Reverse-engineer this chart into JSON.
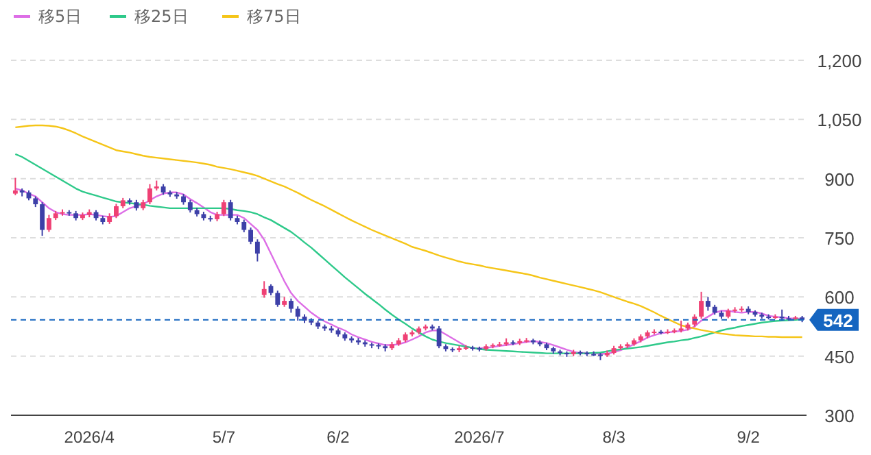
{
  "chart_data": {
    "type": "candlestick",
    "categories": [
      null,
      null,
      null,
      null,
      null,
      null,
      null,
      null,
      null,
      null,
      null,
      "2026/4",
      null,
      null,
      null,
      null,
      null,
      null,
      null,
      null,
      null,
      null,
      null,
      null,
      null,
      null,
      null,
      null,
      null,
      null,
      null,
      "5/7",
      null,
      null,
      null,
      null,
      null,
      null,
      null,
      null,
      null,
      null,
      null,
      null,
      null,
      null,
      null,
      null,
      "6/2",
      null,
      null,
      null,
      null,
      null,
      null,
      null,
      null,
      null,
      null,
      null,
      null,
      null,
      null,
      null,
      null,
      null,
      null,
      null,
      null,
      "2026/7",
      null,
      null,
      null,
      null,
      null,
      null,
      null,
      null,
      null,
      null,
      null,
      null,
      null,
      null,
      null,
      null,
      null,
      null,
      null,
      "8/3",
      null,
      null,
      null,
      null,
      null,
      null,
      null,
      null,
      null,
      null,
      null,
      null,
      null,
      null,
      null,
      null,
      null,
      null,
      null,
      "9/2",
      null,
      null,
      null,
      null,
      null,
      null,
      null,
      null
    ],
    "ylim": [
      300,
      1200
    ],
    "yticks": [
      {
        "value": 300,
        "label": "300"
      },
      {
        "value": 450,
        "label": "450"
      },
      {
        "value": 600,
        "label": "600"
      },
      {
        "value": 750,
        "label": "750"
      },
      {
        "value": 900,
        "label": "900"
      },
      {
        "value": 1050,
        "label": "1,050"
      },
      {
        "value": 1200,
        "label": "1,200"
      }
    ],
    "grid": "y",
    "legend": "top left",
    "ref_lines": [
      {
        "axis": "y",
        "value": 542,
        "label": "542",
        "color": "#1565c0",
        "line_style": "dashed"
      }
    ],
    "series": [
      {
        "ohlc": [
          [
            862,
            902,
            858,
            870
          ],
          [
            870,
            875,
            855,
            865
          ],
          [
            865,
            870,
            845,
            850
          ],
          [
            850,
            855,
            828,
            835
          ],
          [
            835,
            840,
            755,
            770
          ],
          [
            770,
            808,
            765,
            800
          ],
          [
            800,
            818,
            795,
            812
          ],
          [
            812,
            822,
            806,
            815
          ],
          [
            815,
            820,
            806,
            812
          ],
          [
            812,
            818,
            794,
            800
          ],
          [
            800,
            814,
            795,
            808
          ],
          [
            808,
            822,
            802,
            815
          ],
          [
            815,
            820,
            794,
            800
          ],
          [
            800,
            806,
            784,
            790
          ],
          [
            790,
            812,
            785,
            805
          ],
          [
            805,
            836,
            800,
            830
          ],
          [
            830,
            851,
            825,
            845
          ],
          [
            845,
            850,
            834,
            840
          ],
          [
            840,
            846,
            819,
            825
          ],
          [
            825,
            846,
            820,
            840
          ],
          [
            840,
            886,
            835,
            875
          ],
          [
            875,
            895,
            870,
            880
          ],
          [
            880,
            886,
            859,
            865
          ],
          [
            865,
            870,
            854,
            860
          ],
          [
            860,
            866,
            849,
            855
          ],
          [
            855,
            861,
            834,
            840
          ],
          [
            840,
            846,
            814,
            820
          ],
          [
            820,
            826,
            804,
            810
          ],
          [
            810,
            816,
            794,
            800
          ],
          [
            800,
            806,
            791,
            797
          ],
          [
            797,
            816,
            792,
            810
          ],
          [
            810,
            846,
            805,
            840
          ],
          [
            840,
            846,
            794,
            800
          ],
          [
            800,
            806,
            784,
            790
          ],
          [
            790,
            796,
            764,
            770
          ],
          [
            770,
            776,
            734,
            740
          ],
          [
            740,
            746,
            690,
            710
          ],
          [
            605,
            640,
            598,
            620
          ],
          [
            628,
            632,
            604,
            610
          ],
          [
            610,
            616,
            575,
            580
          ],
          [
            580,
            600,
            575,
            590
          ],
          [
            590,
            596,
            560,
            570
          ],
          [
            570,
            576,
            540,
            550
          ],
          [
            550,
            556,
            534,
            540
          ],
          [
            540,
            546,
            529,
            535
          ],
          [
            535,
            540,
            519,
            525
          ],
          [
            525,
            530,
            514,
            520
          ],
          [
            520,
            526,
            509,
            515
          ],
          [
            515,
            520,
            499,
            505
          ],
          [
            505,
            510,
            489,
            495
          ],
          [
            495,
            500,
            484,
            490
          ],
          [
            490,
            496,
            479,
            485
          ],
          [
            485,
            490,
            474,
            480
          ],
          [
            480,
            484,
            470,
            478
          ],
          [
            478,
            482,
            468,
            475
          ],
          [
            475,
            480,
            462,
            470
          ],
          [
            470,
            486,
            465,
            480
          ],
          [
            480,
            496,
            476,
            490
          ],
          [
            490,
            510,
            485,
            505
          ],
          [
            505,
            515,
            500,
            510
          ],
          [
            510,
            525,
            505,
            520
          ],
          [
            520,
            530,
            515,
            525
          ],
          [
            525,
            530,
            515,
            520
          ],
          [
            520,
            526,
            470,
            475
          ],
          [
            475,
            480,
            462,
            468
          ],
          [
            468,
            472,
            460,
            465
          ],
          [
            465,
            476,
            460,
            470
          ],
          [
            470,
            478,
            465,
            472
          ],
          [
            472,
            476,
            464,
            470
          ],
          [
            470,
            474,
            462,
            468
          ],
          [
            468,
            480,
            464,
            475
          ],
          [
            475,
            482,
            470,
            478
          ],
          [
            478,
            486,
            474,
            480
          ],
          [
            480,
            495,
            476,
            485
          ],
          [
            485,
            490,
            478,
            483
          ],
          [
            483,
            494,
            478,
            488
          ],
          [
            488,
            496,
            484,
            490
          ],
          [
            490,
            494,
            480,
            485
          ],
          [
            485,
            490,
            475,
            480
          ],
          [
            480,
            484,
            465,
            470
          ],
          [
            470,
            474,
            456,
            462
          ],
          [
            462,
            466,
            452,
            458
          ],
          [
            458,
            462,
            448,
            455
          ],
          [
            455,
            466,
            450,
            460
          ],
          [
            460,
            464,
            452,
            458
          ],
          [
            458,
            462,
            450,
            455
          ],
          [
            455,
            462,
            450,
            454
          ],
          [
            454,
            458,
            440,
            452
          ],
          [
            452,
            464,
            448,
            458
          ],
          [
            458,
            476,
            454,
            470
          ],
          [
            470,
            480,
            466,
            475
          ],
          [
            475,
            485,
            470,
            480
          ],
          [
            480,
            495,
            476,
            490
          ],
          [
            490,
            505,
            485,
            500
          ],
          [
            500,
            515,
            495,
            510
          ],
          [
            510,
            518,
            505,
            512
          ],
          [
            512,
            516,
            505,
            510
          ],
          [
            510,
            518,
            506,
            512
          ],
          [
            512,
            520,
            508,
            515
          ],
          [
            515,
            540,
            510,
            520
          ],
          [
            520,
            535,
            515,
            530
          ],
          [
            530,
            556,
            525,
            550
          ],
          [
            550,
            613,
            545,
            590
          ],
          [
            590,
            600,
            565,
            575
          ],
          [
            575,
            580,
            555,
            560
          ],
          [
            560,
            565,
            545,
            550
          ],
          [
            550,
            570,
            546,
            565
          ],
          [
            565,
            574,
            560,
            568
          ],
          [
            568,
            576,
            562,
            570
          ],
          [
            570,
            576,
            556,
            562
          ],
          [
            562,
            566,
            550,
            555
          ],
          [
            555,
            560,
            545,
            550
          ],
          [
            550,
            556,
            543,
            548
          ],
          [
            548,
            556,
            544,
            550
          ],
          [
            550,
            568,
            540,
            546
          ],
          [
            546,
            552,
            540,
            545
          ],
          [
            545,
            552,
            542,
            548
          ],
          [
            548,
            552,
            536,
            542
          ]
        ],
        "colors": [
          "#ef4074",
          "#3d40a8",
          "#3d40a8",
          "#3d40a8",
          "#3d40a8",
          "#ef4074",
          "#ef4074",
          "#ef4074",
          "#3d40a8",
          "#3d40a8",
          "#ef4074",
          "#ef4074",
          "#3d40a8",
          "#3d40a8",
          "#ef4074",
          "#ef4074",
          "#ef4074",
          "#3d40a8",
          "#3d40a8",
          "#ef4074",
          "#ef4074",
          "#ef4074",
          "#3d40a8",
          "#3d40a8",
          "#3d40a8",
          "#3d40a8",
          "#3d40a8",
          "#3d40a8",
          "#3d40a8",
          "#3d40a8",
          "#ef4074",
          "#ef4074",
          "#3d40a8",
          "#3d40a8",
          "#3d40a8",
          "#3d40a8",
          "#3d40a8",
          "#ef4074",
          "#3d40a8",
          "#3d40a8",
          "#ef4074",
          "#3d40a8",
          "#3d40a8",
          "#3d40a8",
          "#3d40a8",
          "#3d40a8",
          "#3d40a8",
          "#3d40a8",
          "#3d40a8",
          "#3d40a8",
          "#3d40a8",
          "#3d40a8",
          "#3d40a8",
          "#3d40a8",
          "#3d40a8",
          "#3d40a8",
          "#ef4074",
          "#ef4074",
          "#ef4074",
          "#ef4074",
          "#ef4074",
          "#ef4074",
          "#3d40a8",
          "#3d40a8",
          "#3d40a8",
          "#3d40a8",
          "#ef4074",
          "#ef4074",
          "#3d40a8",
          "#3d40a8",
          "#ef4074",
          "#ef4074",
          "#ef4074",
          "#ef4074",
          "#3d40a8",
          "#ef4074",
          "#ef4074",
          "#3d40a8",
          "#3d40a8",
          "#3d40a8",
          "#3d40a8",
          "#3d40a8",
          "#3d40a8",
          "#ef4074",
          "#3d40a8",
          "#3d40a8",
          "#3d40a8",
          "#3d40a8",
          "#ef4074",
          "#ef4074",
          "#ef4074",
          "#ef4074",
          "#ef4074",
          "#ef4074",
          "#ef4074",
          "#ef4074",
          "#3d40a8",
          "#ef4074",
          "#ef4074",
          "#ef4074",
          "#ef4074",
          "#ef4074",
          "#ef4074",
          "#3d40a8",
          "#3d40a8",
          "#3d40a8",
          "#ef4074",
          "#ef4074",
          "#ef4074",
          "#3d40a8",
          "#3d40a8",
          "#3d40a8",
          "#3d40a8",
          "#ef4074",
          "#3d40a8",
          "#3d40a8",
          "#ef4074",
          "#3d40a8"
        ]
      },
      {
        "type": "line",
        "name": "移5日",
        "color": "#dd6ee6",
        "values": [
          875,
          870,
          862,
          855,
          840,
          825,
          815,
          810,
          808,
          808,
          808,
          810,
          808,
          805,
          803,
          805,
          815,
          825,
          830,
          835,
          845,
          855,
          862,
          865,
          865,
          860,
          848,
          838,
          827,
          815,
          808,
          808,
          808,
          808,
          800,
          785,
          770,
          745,
          710,
          675,
          640,
          610,
          590,
          575,
          560,
          548,
          538,
          530,
          522,
          515,
          505,
          498,
          492,
          486,
          482,
          478,
          478,
          480,
          485,
          492,
          500,
          510,
          515,
          515,
          505,
          495,
          485,
          475,
          470,
          470,
          471,
          473,
          476,
          478,
          480,
          483,
          486,
          488,
          486,
          483,
          478,
          472,
          466,
          461,
          458,
          458,
          457,
          456,
          456,
          460,
          465,
          472,
          480,
          488,
          497,
          503,
          508,
          510,
          512,
          514,
          517,
          525,
          540,
          550,
          560,
          565,
          565,
          562,
          560,
          562,
          562,
          558,
          552,
          550,
          548,
          546,
          545,
          545
        ]
      },
      {
        "type": "line",
        "name": "移25日",
        "color": "#2ec98a",
        "values": [
          962,
          955,
          945,
          935,
          925,
          915,
          905,
          895,
          885,
          875,
          867,
          862,
          857,
          852,
          847,
          842,
          840,
          838,
          836,
          834,
          831,
          829,
          827,
          825,
          825,
          825,
          825,
          825,
          825,
          825,
          825,
          825,
          823,
          820,
          818,
          815,
          810,
          802,
          795,
          785,
          775,
          765,
          752,
          738,
          725,
          710,
          695,
          680,
          665,
          650,
          636,
          622,
          608,
          595,
          582,
          568,
          555,
          543,
          532,
          520,
          510,
          500,
          492,
          487,
          483,
          480,
          477,
          474,
          471,
          468,
          466,
          465,
          464,
          463,
          462,
          461,
          460,
          459,
          458,
          457,
          457,
          457,
          457,
          457,
          457,
          457,
          458,
          459,
          462,
          465,
          467,
          469,
          471,
          473,
          476,
          479,
          482,
          485,
          487,
          490,
          492,
          496,
          500,
          505,
          510,
          515,
          519,
          522,
          526,
          529,
          532,
          535,
          537,
          539,
          540,
          541,
          542,
          543
        ]
      },
      {
        "type": "line",
        "name": "移75日",
        "color": "#f5c518",
        "values": [
          1030,
          1032,
          1034,
          1035,
          1035,
          1034,
          1032,
          1028,
          1022,
          1015,
          1007,
          1000,
          993,
          986,
          979,
          972,
          969,
          966,
          962,
          958,
          955,
          953,
          951,
          949,
          947,
          945,
          943,
          941,
          938,
          935,
          930,
          927,
          924,
          920,
          916,
          912,
          907,
          900,
          893,
          886,
          880,
          872,
          864,
          855,
          846,
          838,
          830,
          821,
          812,
          803,
          794,
          786,
          778,
          770,
          763,
          756,
          749,
          742,
          735,
          727,
          722,
          717,
          711,
          705,
          700,
          695,
          690,
          686,
          683,
          680,
          676,
          673,
          670,
          667,
          664,
          661,
          658,
          654,
          649,
          645,
          641,
          637,
          633,
          629,
          625,
          621,
          617,
          612,
          606,
          600,
          594,
          588,
          583,
          577,
          569,
          561,
          552,
          544,
          536,
          528,
          524,
          520,
          516,
          513,
          510,
          507,
          505,
          503,
          502,
          501,
          500,
          500,
          499,
          499,
          498,
          498,
          498,
          498
        ]
      }
    ]
  }
}
